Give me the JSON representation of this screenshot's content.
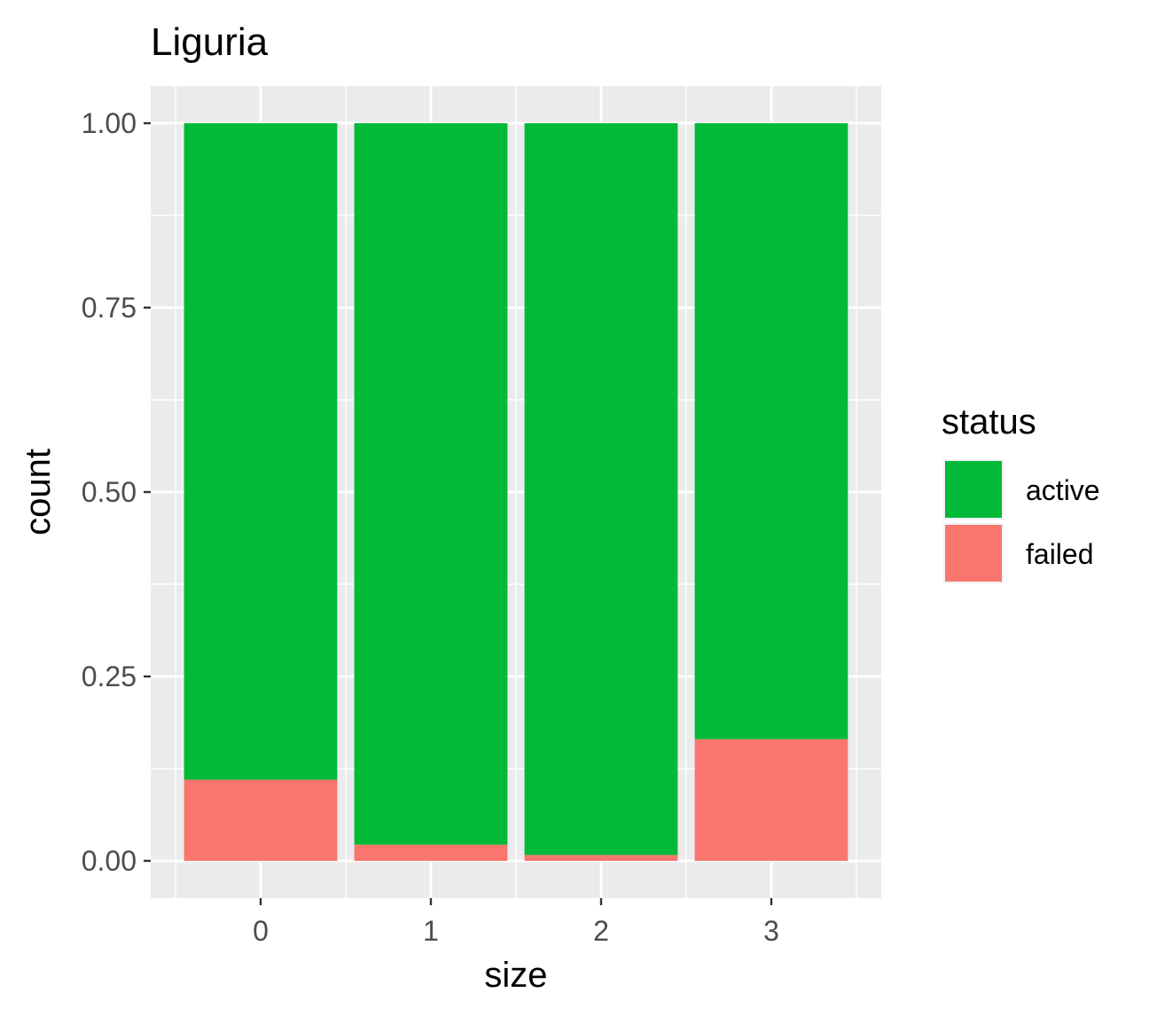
{
  "chart_data": {
    "type": "bar",
    "stacked": true,
    "title": "Liguria",
    "xlabel": "size",
    "ylabel": "count",
    "categories": [
      "0",
      "1",
      "2",
      "3"
    ],
    "ylim": [
      0,
      1
    ],
    "y_ticks": [
      "0.00",
      "0.25",
      "0.50",
      "0.75",
      "1.00"
    ],
    "y_tick_values": [
      0,
      0.25,
      0.5,
      0.75,
      1.0
    ],
    "grid": true,
    "legend": {
      "title": "status",
      "position": "right"
    },
    "series": [
      {
        "name": "failed",
        "color": "#F8766D",
        "values": [
          0.11,
          0.022,
          0.008,
          0.165
        ]
      },
      {
        "name": "active",
        "color": "#00BA38",
        "values": [
          0.89,
          0.978,
          0.992,
          0.835
        ]
      }
    ],
    "legend_order": [
      "active",
      "failed"
    ]
  }
}
